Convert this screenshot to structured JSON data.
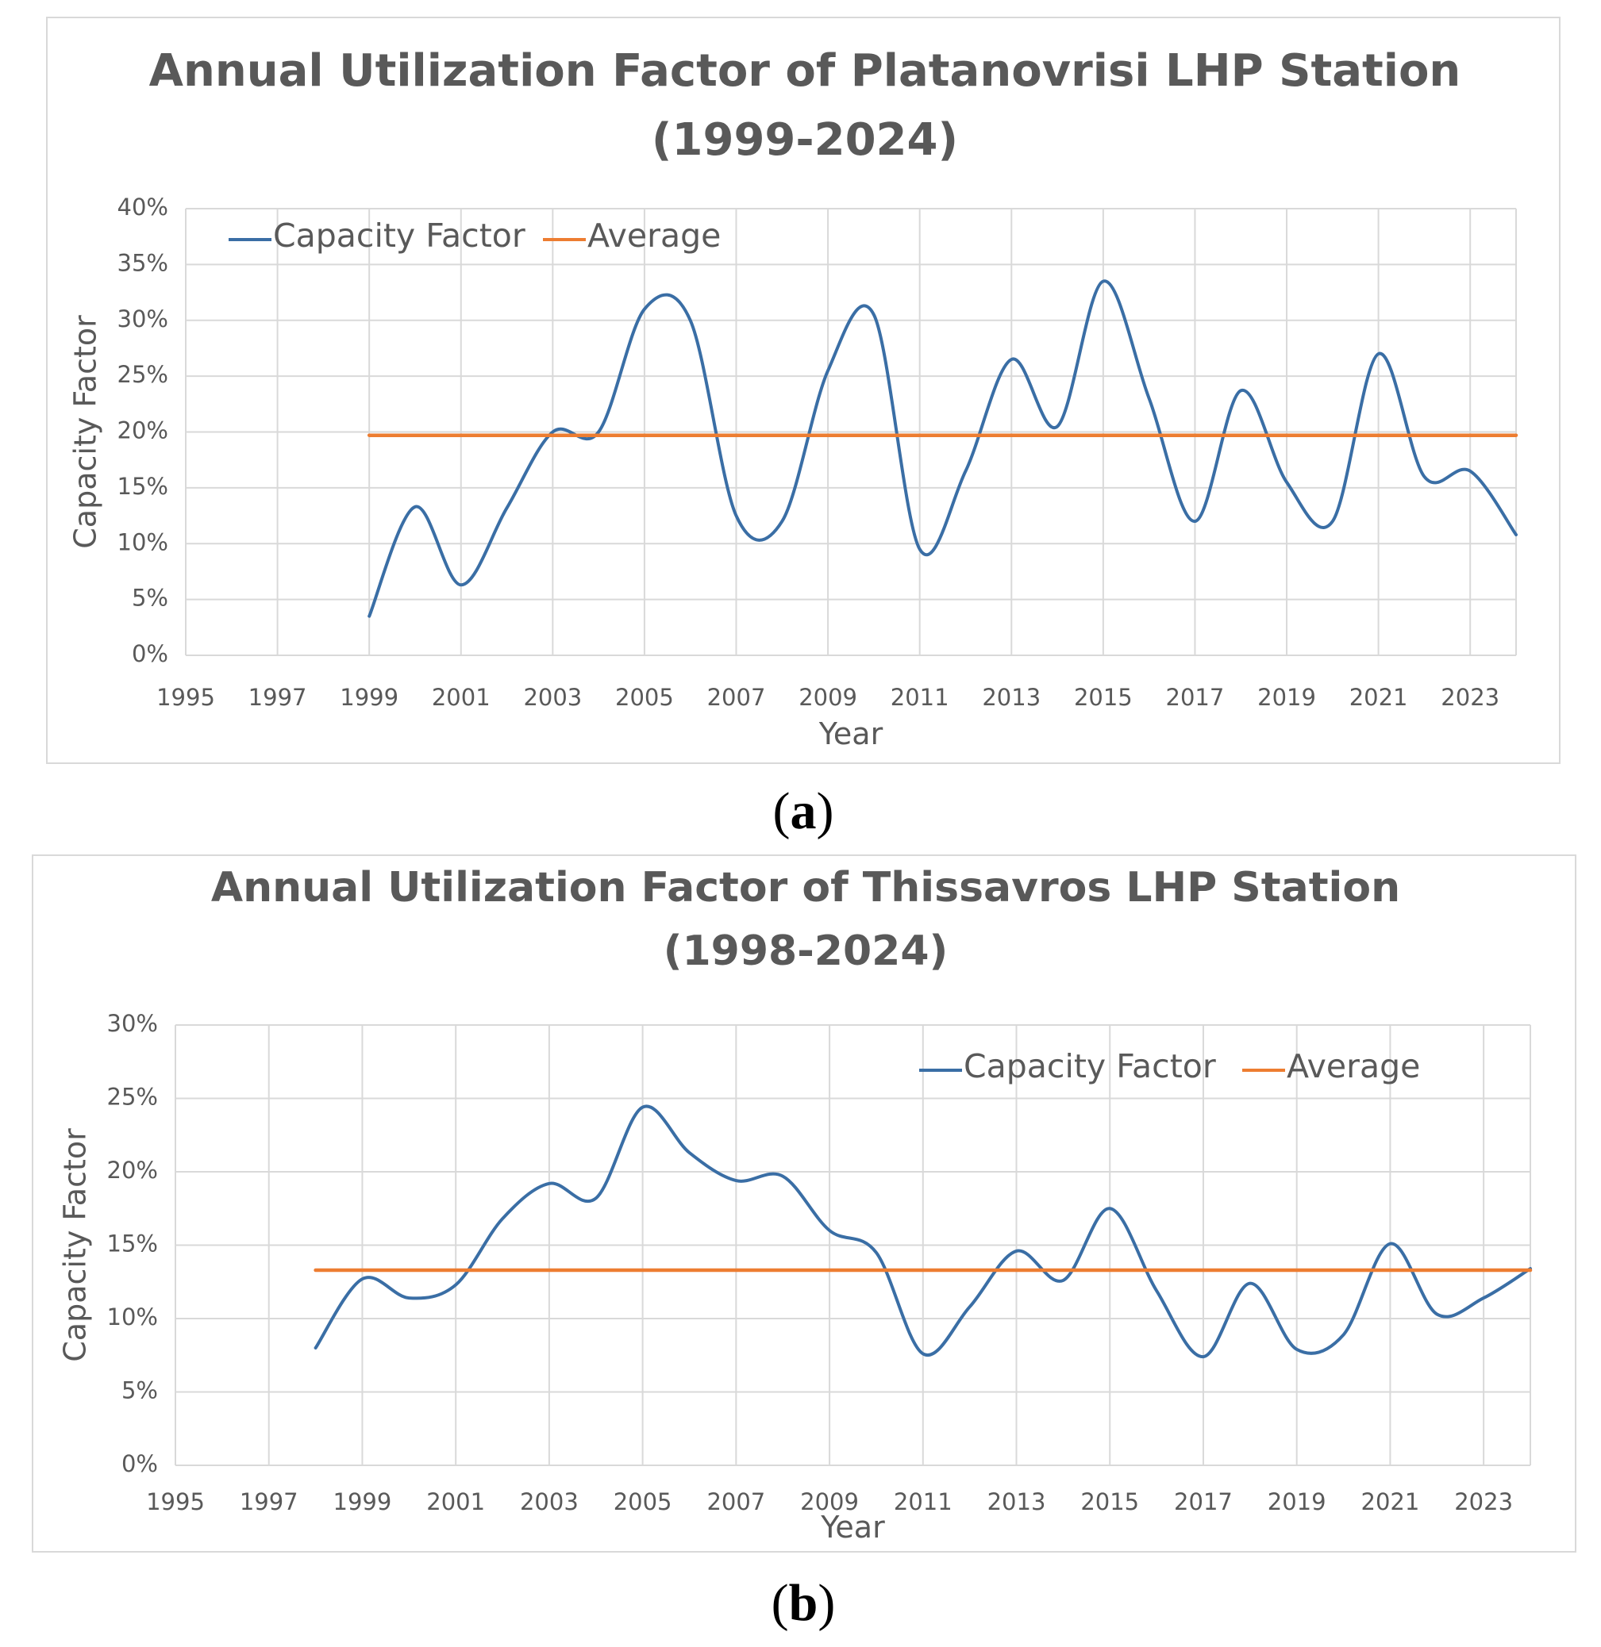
{
  "chart_data": [
    {
      "type": "line",
      "title_line1": "Annual Utilization Factor of Platanovrisi LHP Station",
      "title_line2": "(1999-2024)",
      "xlabel": "Year",
      "ylabel": "Capacity Factor",
      "xlim": [
        1995,
        2024
      ],
      "ylim": [
        0,
        40
      ],
      "x_ticks": [
        "1995",
        "1997",
        "1999",
        "2001",
        "2003",
        "2005",
        "2007",
        "2009",
        "2011",
        "2013",
        "2015",
        "2017",
        "2019",
        "2021",
        "2023"
      ],
      "y_ticks": [
        "0%",
        "5%",
        "10%",
        "15%",
        "20%",
        "25%",
        "30%",
        "35%",
        "40%"
      ],
      "legend": [
        "Capacity Factor",
        "Average"
      ],
      "legend_position": "top-left",
      "grid": true,
      "series": [
        {
          "name": "Capacity Factor",
          "color": "#3a6ea5",
          "x": [
            1999,
            2000,
            2001,
            2002,
            2003,
            2004,
            2005,
            2006,
            2007,
            2008,
            2009,
            2010,
            2011,
            2012,
            2013,
            2014,
            2015,
            2016,
            2017,
            2018,
            2019,
            2020,
            2021,
            2022,
            2023,
            2024
          ],
          "values": [
            3.5,
            13.3,
            6.3,
            13.2,
            20.0,
            20.0,
            31.0,
            30.0,
            12.5,
            12.0,
            25.5,
            30.5,
            9.5,
            16.5,
            26.5,
            20.5,
            33.5,
            23.0,
            12.0,
            23.7,
            15.5,
            12.0,
            27.0,
            16.0,
            16.5,
            10.8
          ]
        },
        {
          "name": "Average",
          "color": "#ed7d31",
          "x": [
            1999,
            2024
          ],
          "values": [
            19.7,
            19.7
          ]
        }
      ],
      "caption": "(a)",
      "caption_letter": "a"
    },
    {
      "type": "line",
      "title_line1": "Annual Utilization Factor of Thissavros  LHP Station",
      "title_line2": "(1998-2024)",
      "xlabel": "Year",
      "ylabel": "Capacity Factor",
      "xlim": [
        1995,
        2024
      ],
      "ylim": [
        0,
        30
      ],
      "x_ticks": [
        "1995",
        "1997",
        "1999",
        "2001",
        "2003",
        "2005",
        "2007",
        "2009",
        "2011",
        "2013",
        "2015",
        "2017",
        "2019",
        "2021",
        "2023"
      ],
      "y_ticks": [
        "0%",
        "5%",
        "10%",
        "15%",
        "20%",
        "25%",
        "30%"
      ],
      "legend": [
        "Capacity Factor",
        "Average"
      ],
      "legend_position": "top-right",
      "grid": true,
      "series": [
        {
          "name": "Capacity Factor",
          "color": "#3a6ea5",
          "x": [
            1998,
            1999,
            2000,
            2001,
            2002,
            2003,
            2004,
            2005,
            2006,
            2007,
            2008,
            2009,
            2010,
            2011,
            2012,
            2013,
            2014,
            2015,
            2016,
            2017,
            2018,
            2019,
            2020,
            2021,
            2022,
            2023,
            2024
          ],
          "values": [
            8.0,
            12.7,
            11.4,
            12.3,
            16.8,
            19.2,
            18.2,
            24.4,
            21.3,
            19.4,
            19.7,
            16.0,
            14.5,
            7.6,
            10.8,
            14.6,
            12.6,
            17.5,
            11.9,
            7.4,
            12.4,
            7.9,
            8.9,
            15.1,
            10.3,
            11.4,
            13.4
          ]
        },
        {
          "name": "Average",
          "color": "#ed7d31",
          "x": [
            1998,
            2024
          ],
          "values": [
            13.3,
            13.3
          ]
        }
      ],
      "caption": "(b)",
      "caption_letter": "b"
    }
  ]
}
